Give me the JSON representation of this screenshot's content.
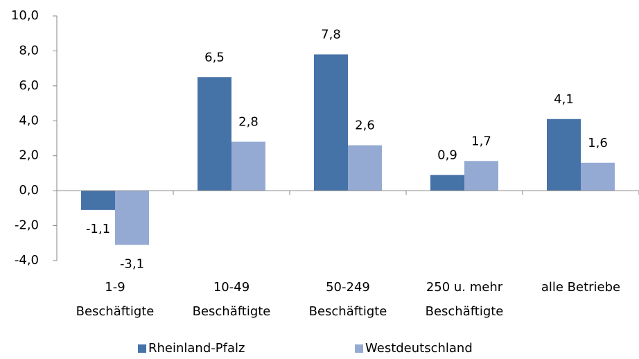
{
  "chart_data": {
    "type": "bar",
    "categories": [
      "1-9\nBeschäftigte",
      "10-49\nBeschäftigte",
      "50-249\nBeschäftigte",
      "250 u. mehr\nBeschäftigte",
      "alle Betriebe"
    ],
    "series": [
      {
        "name": "Rheinland-Pfalz",
        "color": "#4572a7",
        "values": [
          -1.1,
          6.5,
          7.8,
          0.9,
          4.1
        ],
        "value_labels": [
          "-1,1",
          "6,5",
          "7,8",
          "0,9",
          "4,1"
        ]
      },
      {
        "name": "Westdeutschland",
        "color": "#95aad3",
        "values": [
          -3.1,
          2.8,
          2.6,
          1.7,
          1.6
        ],
        "value_labels": [
          "-3,1",
          "2,8",
          "2,6",
          "1,7",
          "1,6"
        ]
      }
    ],
    "ylim": [
      -4,
      10
    ],
    "yticks": [
      {
        "value": -4,
        "label": "-4,0"
      },
      {
        "value": -2,
        "label": "-2,0"
      },
      {
        "value": 0,
        "label": "0,0"
      },
      {
        "value": 2,
        "label": "2,0"
      },
      {
        "value": 4,
        "label": "4,0"
      },
      {
        "value": 6,
        "label": "6,0"
      },
      {
        "value": 8,
        "label": "8,0"
      },
      {
        "value": 10,
        "label": "10,0"
      }
    ],
    "legend": "bottom"
  }
}
